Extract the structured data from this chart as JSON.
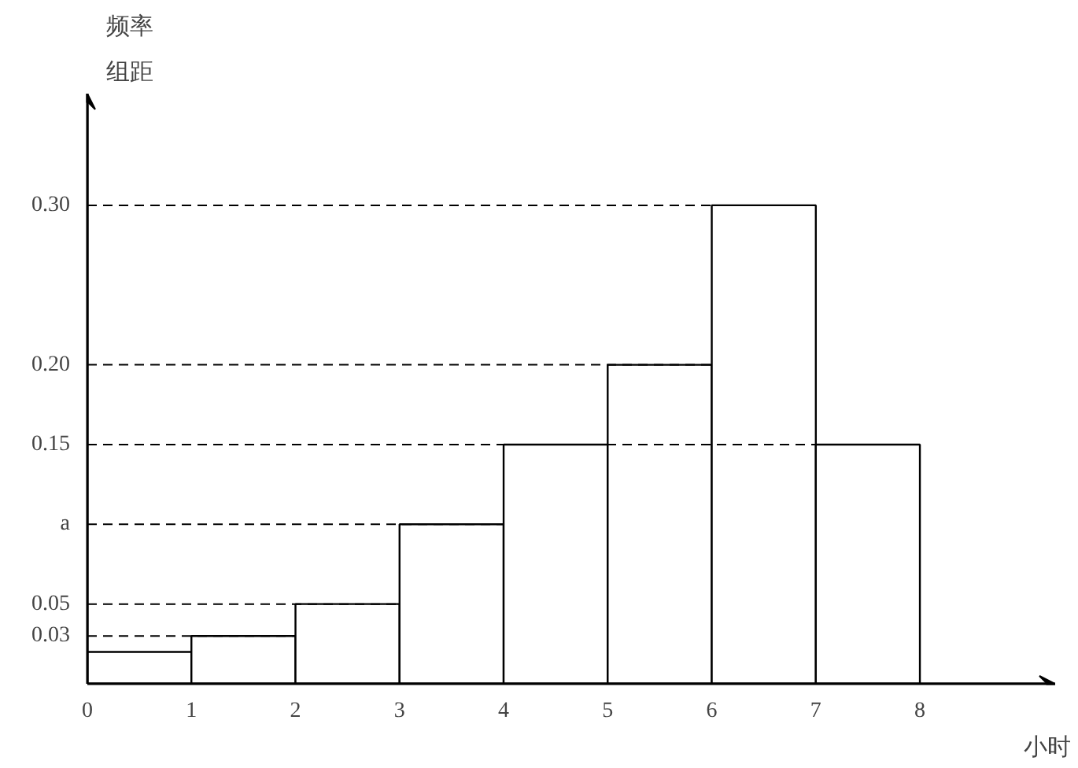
{
  "chart_data": {
    "type": "histogram",
    "xlabel": "小时",
    "ylabel": "频率组距",
    "bins": [
      0,
      1,
      2,
      3,
      4,
      5,
      6,
      7,
      8
    ],
    "values": [
      0.02,
      0.03,
      0.05,
      0.1,
      0.15,
      0.2,
      0.3,
      0.15
    ],
    "color": "#ffffff",
    "xlim": [
      0,
      9.3
    ],
    "ylim": [
      0,
      0.37
    ],
    "xticks": [
      0,
      1,
      2,
      3,
      4,
      5,
      6,
      7,
      8
    ],
    "yticks": [
      0.03,
      0.05,
      {
        "value": 0.1,
        "label": "a"
      },
      0.15,
      {
        "value": 0.2,
        "label": "0.20"
      },
      {
        "value": 0.3,
        "label": "0.30"
      }
    ],
    "ref_lines": [
      {
        "axis": "y",
        "value": 0.03,
        "line_style": "dashed"
      },
      {
        "axis": "y",
        "value": 0.05,
        "line_style": "dashed"
      },
      {
        "axis": "y",
        "value": 0.1,
        "line_style": "dashed"
      },
      {
        "axis": "y",
        "value": 0.15,
        "line_style": "dashed"
      },
      {
        "axis": "y",
        "value": 0.2,
        "line_style": "dashed"
      },
      {
        "axis": "y",
        "value": 0.3,
        "line_style": "dashed"
      }
    ],
    "grid": false
  }
}
